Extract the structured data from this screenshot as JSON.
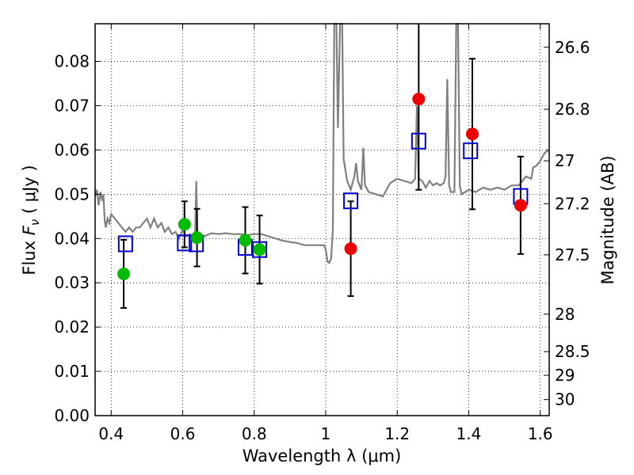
{
  "chart_data": {
    "type": "scatter",
    "xlabel": "Wavelength  λ (μm)",
    "ylabel": "Flux  F_ν  ( μJy )",
    "y2label": "Magnitude (AB)",
    "xlim": [
      0.355,
      1.625
    ],
    "ylim": [
      0.0,
      0.0885
    ],
    "x_ticks": [
      0.4,
      0.6,
      0.8,
      1.0,
      1.2,
      1.4,
      1.6
    ],
    "x_tick_labels": [
      "0.4",
      "0.6",
      "0.8",
      "1",
      "1.2",
      "1.4",
      "1.6"
    ],
    "y_ticks": [
      0.0,
      0.01,
      0.02,
      0.03,
      0.04,
      0.05,
      0.06,
      0.07,
      0.08
    ],
    "y_tick_labels": [
      "0.00",
      "0.01",
      "0.02",
      "0.03",
      "0.04",
      "0.05",
      "0.06",
      "0.07",
      "0.08"
    ],
    "y2_ticks": [
      26.6,
      26.8,
      27,
      27.2,
      27.5,
      28,
      28.5,
      29,
      30
    ],
    "y2_tick_labels": [
      "26.6",
      "26.8",
      "27",
      "27.2",
      "27.5",
      "28",
      "28.5",
      "29",
      "30"
    ],
    "grid": true,
    "colors": {
      "spectrum": "#808080",
      "model": "#0000cc",
      "green": "#00bb00",
      "red": "#ee0000",
      "errorbar": "#000000"
    },
    "spectrum": [
      [
        0.355,
        0.0495
      ],
      [
        0.36,
        0.051
      ],
      [
        0.365,
        0.0475
      ],
      [
        0.37,
        0.0505
      ],
      [
        0.375,
        0.0485
      ],
      [
        0.378,
        0.05
      ],
      [
        0.382,
        0.044
      ],
      [
        0.385,
        0.0425
      ],
      [
        0.39,
        0.0445
      ],
      [
        0.395,
        0.0435
      ],
      [
        0.4,
        0.0455
      ],
      [
        0.41,
        0.0445
      ],
      [
        0.42,
        0.0435
      ],
      [
        0.43,
        0.0425
      ],
      [
        0.44,
        0.0415
      ],
      [
        0.45,
        0.0425
      ],
      [
        0.46,
        0.0415
      ],
      [
        0.47,
        0.0425
      ],
      [
        0.48,
        0.0425
      ],
      [
        0.49,
        0.0435
      ],
      [
        0.5,
        0.0445
      ],
      [
        0.51,
        0.0425
      ],
      [
        0.52,
        0.0445
      ],
      [
        0.53,
        0.0425
      ],
      [
        0.54,
        0.0435
      ],
      [
        0.55,
        0.0415
      ],
      [
        0.56,
        0.0425
      ],
      [
        0.57,
        0.041
      ],
      [
        0.58,
        0.0415
      ],
      [
        0.59,
        0.04
      ],
      [
        0.6,
        0.042
      ],
      [
        0.61,
        0.0405
      ],
      [
        0.62,
        0.041
      ],
      [
        0.63,
        0.0405
      ],
      [
        0.635,
        0.0415
      ],
      [
        0.638,
        0.053
      ],
      [
        0.641,
        0.041
      ],
      [
        0.65,
        0.041
      ],
      [
        0.66,
        0.0405
      ],
      [
        0.68,
        0.0412
      ],
      [
        0.7,
        0.041
      ],
      [
        0.72,
        0.0412
      ],
      [
        0.74,
        0.041
      ],
      [
        0.76,
        0.041
      ],
      [
        0.78,
        0.0408
      ],
      [
        0.8,
        0.041
      ],
      [
        0.82,
        0.041
      ],
      [
        0.84,
        0.0405
      ],
      [
        0.86,
        0.04
      ],
      [
        0.88,
        0.0395
      ],
      [
        0.9,
        0.0392
      ],
      [
        0.92,
        0.039
      ],
      [
        0.94,
        0.0385
      ],
      [
        0.96,
        0.0385
      ],
      [
        0.98,
        0.0385
      ],
      [
        0.995,
        0.0385
      ],
      [
        1.0,
        0.0375
      ],
      [
        1.005,
        0.0348
      ],
      [
        1.01,
        0.0345
      ],
      [
        1.015,
        0.0355
      ],
      [
        1.02,
        0.042
      ],
      [
        1.024,
        0.0885
      ],
      [
        1.03,
        0.0885
      ],
      [
        1.034,
        0.065
      ],
      [
        1.04,
        0.0885
      ],
      [
        1.046,
        0.0885
      ],
      [
        1.05,
        0.058
      ],
      [
        1.06,
        0.053
      ],
      [
        1.07,
        0.051
      ],
      [
        1.08,
        0.054
      ],
      [
        1.085,
        0.057
      ],
      [
        1.09,
        0.053
      ],
      [
        1.1,
        0.051
      ],
      [
        1.105,
        0.0605
      ],
      [
        1.11,
        0.052
      ],
      [
        1.12,
        0.0505
      ],
      [
        1.14,
        0.05
      ],
      [
        1.16,
        0.0495
      ],
      [
        1.18,
        0.0525
      ],
      [
        1.2,
        0.0535
      ],
      [
        1.22,
        0.053
      ],
      [
        1.24,
        0.0525
      ],
      [
        1.25,
        0.0535
      ],
      [
        1.255,
        0.07
      ],
      [
        1.26,
        0.0535
      ],
      [
        1.27,
        0.053
      ],
      [
        1.28,
        0.0515
      ],
      [
        1.29,
        0.053
      ],
      [
        1.3,
        0.052
      ],
      [
        1.31,
        0.0525
      ],
      [
        1.32,
        0.052
      ],
      [
        1.33,
        0.0525
      ],
      [
        1.335,
        0.054
      ],
      [
        1.34,
        0.076
      ],
      [
        1.345,
        0.052
      ],
      [
        1.35,
        0.0505
      ],
      [
        1.36,
        0.0505
      ],
      [
        1.365,
        0.0885
      ],
      [
        1.37,
        0.0885
      ],
      [
        1.375,
        0.052
      ],
      [
        1.38,
        0.05
      ],
      [
        1.4,
        0.051
      ],
      [
        1.42,
        0.0505
      ],
      [
        1.44,
        0.0515
      ],
      [
        1.46,
        0.051
      ],
      [
        1.48,
        0.0515
      ],
      [
        1.5,
        0.051
      ],
      [
        1.52,
        0.052
      ],
      [
        1.54,
        0.052
      ],
      [
        1.56,
        0.054
      ],
      [
        1.575,
        0.0535
      ],
      [
        1.58,
        0.056
      ],
      [
        1.59,
        0.0565
      ],
      [
        1.6,
        0.0575
      ],
      [
        1.61,
        0.059
      ],
      [
        1.62,
        0.06
      ],
      [
        1.625,
        0.0595
      ]
    ],
    "model_points": [
      {
        "x": 0.44,
        "y": 0.0388
      },
      {
        "x": 0.605,
        "y": 0.039
      },
      {
        "x": 0.638,
        "y": 0.0388
      },
      {
        "x": 0.775,
        "y": 0.038
      },
      {
        "x": 0.815,
        "y": 0.0375
      },
      {
        "x": 1.07,
        "y": 0.0485
      },
      {
        "x": 1.26,
        "y": 0.062
      },
      {
        "x": 1.405,
        "y": 0.0598
      },
      {
        "x": 1.545,
        "y": 0.0495
      }
    ],
    "observed_points": [
      {
        "x": 0.435,
        "y": 0.032,
        "err": 0.0077,
        "color": "green"
      },
      {
        "x": 0.605,
        "y": 0.0432,
        "err": 0.0052,
        "color": "green"
      },
      {
        "x": 0.64,
        "y": 0.0402,
        "err": 0.0065,
        "color": "green"
      },
      {
        "x": 0.775,
        "y": 0.0396,
        "err": 0.0075,
        "color": "green"
      },
      {
        "x": 0.815,
        "y": 0.0375,
        "err": 0.0077,
        "color": "green"
      },
      {
        "x": 1.07,
        "y": 0.0377,
        "err": 0.0107,
        "color": "red"
      },
      {
        "x": 1.26,
        "y": 0.0715,
        "err": 0.0205,
        "color": "red"
      },
      {
        "x": 1.41,
        "y": 0.0636,
        "err": 0.017,
        "color": "red"
      },
      {
        "x": 1.545,
        "y": 0.0475,
        "err": 0.011,
        "color": "red"
      }
    ]
  }
}
